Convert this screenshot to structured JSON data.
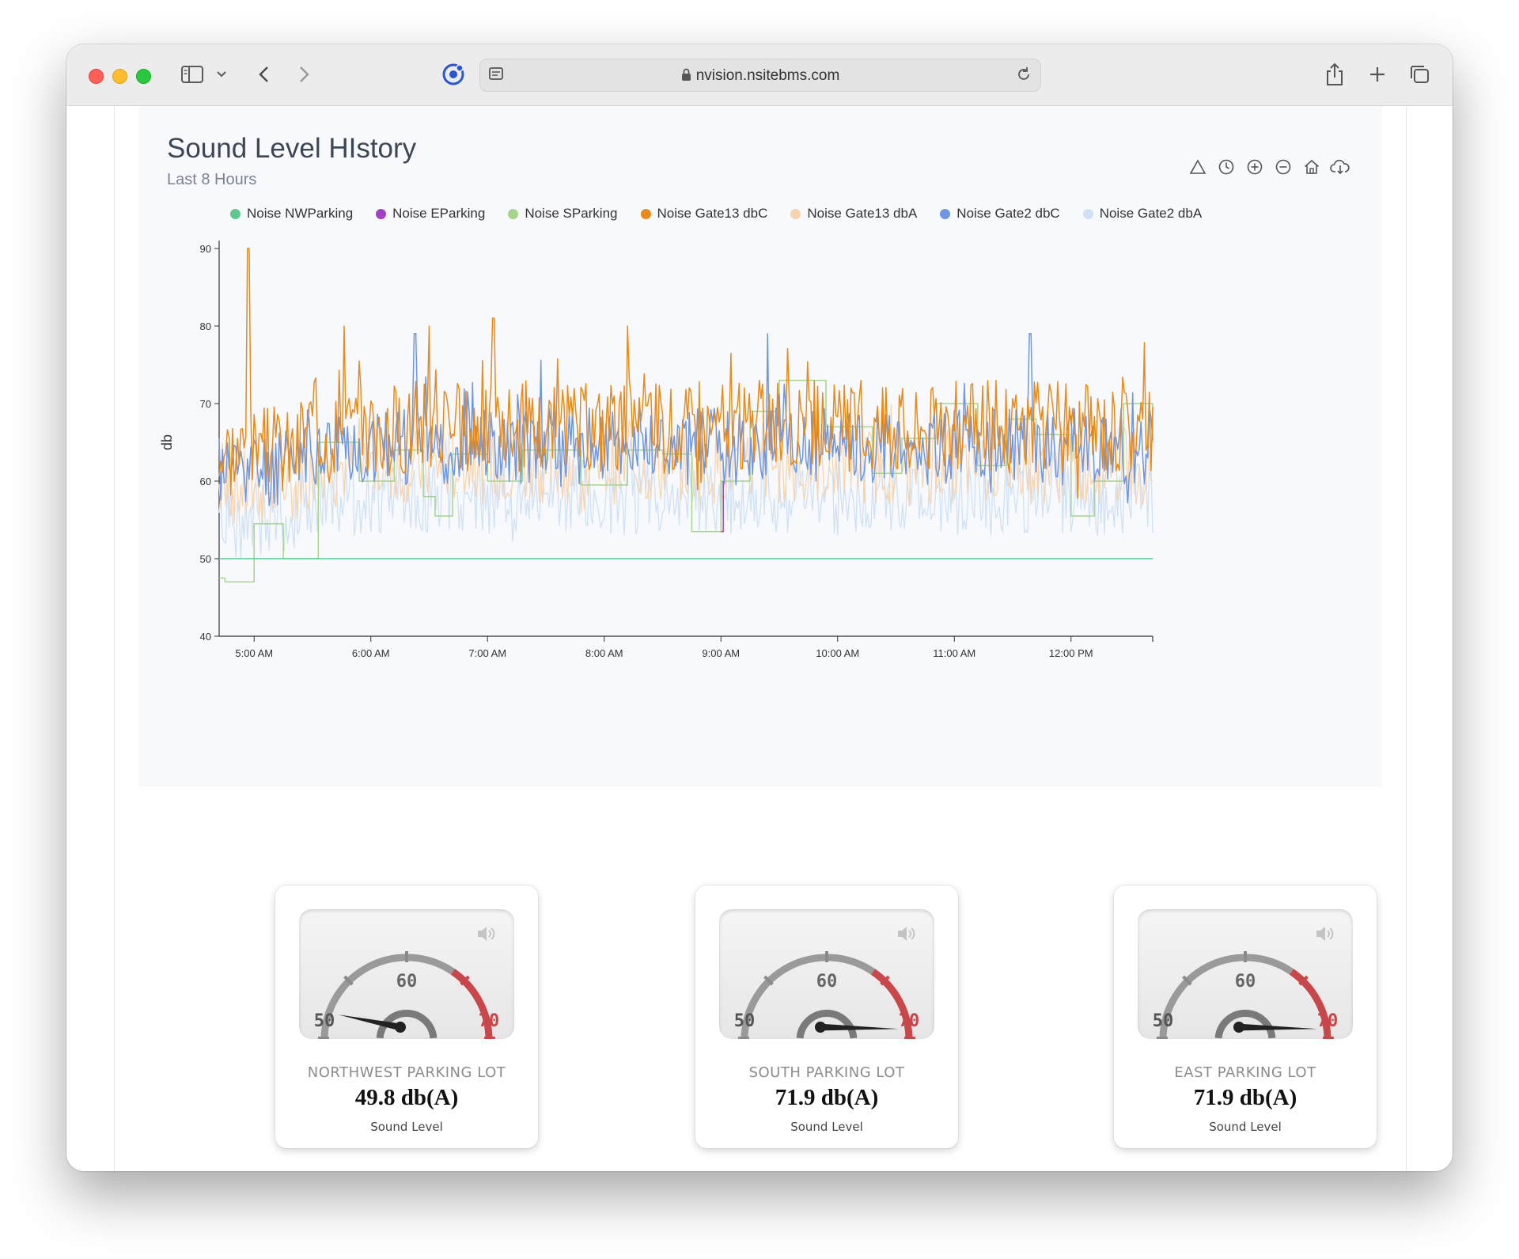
{
  "browser": {
    "url": "nvision.nsitebms.com"
  },
  "chart": {
    "title": "Sound Level HIstory",
    "subtitle": "Last 8 Hours",
    "toolbar": [
      "triangle-icon",
      "clock-icon",
      "zoom-in-icon",
      "zoom-out-icon",
      "home-icon",
      "download-cloud-icon"
    ]
  },
  "chart_data": {
    "type": "line",
    "ylabel": "db",
    "ylim": [
      40,
      90
    ],
    "yticks": [
      40,
      50,
      60,
      70,
      80,
      90
    ],
    "xlim_hours": [
      4.7,
      12.7
    ],
    "xticks": [
      {
        "h": 5,
        "label": "5:00 AM"
      },
      {
        "h": 6,
        "label": "6:00 AM"
      },
      {
        "h": 7,
        "label": "7:00 AM"
      },
      {
        "h": 8,
        "label": "8:00 AM"
      },
      {
        "h": 9,
        "label": "9:00 AM"
      },
      {
        "h": 10,
        "label": "10:00 AM"
      },
      {
        "h": 11,
        "label": "11:00 AM"
      },
      {
        "h": 12,
        "label": "12:00 PM"
      }
    ],
    "legend_position": "top",
    "series": [
      {
        "name": "Noise NWParking",
        "color": "#5ec98f",
        "style": "flat",
        "points": [
          [
            4.7,
            50
          ],
          [
            12.7,
            50
          ]
        ]
      },
      {
        "name": "Noise EParking",
        "color": "#a540c4",
        "style": "step",
        "points": [
          [
            9.0,
            53.5
          ],
          [
            9.02,
            60
          ]
        ]
      },
      {
        "name": "Noise SParking",
        "color": "#a5d48a",
        "style": "step",
        "points": [
          [
            4.7,
            47.5
          ],
          [
            4.75,
            47
          ],
          [
            5.0,
            54.5
          ],
          [
            5.25,
            50
          ],
          [
            5.55,
            65
          ],
          [
            5.9,
            60
          ],
          [
            6.2,
            64
          ],
          [
            6.45,
            58
          ],
          [
            6.55,
            55.5
          ],
          [
            6.7,
            63.5
          ],
          [
            7.0,
            60
          ],
          [
            7.3,
            64
          ],
          [
            7.5,
            61
          ],
          [
            7.5,
            64
          ],
          [
            7.8,
            59.5
          ],
          [
            8.2,
            64
          ],
          [
            8.5,
            63.5
          ],
          [
            8.75,
            53.5
          ],
          [
            9.0,
            60
          ],
          [
            9.25,
            69
          ],
          [
            9.5,
            73
          ],
          [
            9.9,
            67
          ],
          [
            10.3,
            61
          ],
          [
            10.55,
            65.5
          ],
          [
            10.85,
            70
          ],
          [
            11.2,
            62
          ],
          [
            11.45,
            68
          ],
          [
            11.7,
            66
          ],
          [
            12.0,
            55.5
          ],
          [
            12.2,
            60
          ],
          [
            12.45,
            70
          ],
          [
            12.7,
            65
          ]
        ]
      },
      {
        "name": "Noise Gate13 dbC",
        "color": "#e88a1a",
        "style": "noise",
        "mean": 67,
        "amp": 6,
        "seed": 3,
        "spikes": [
          [
            4.95,
            90
          ],
          [
            5.77,
            80
          ],
          [
            6.5,
            80
          ],
          [
            7.05,
            81
          ],
          [
            8.2,
            80
          ]
        ]
      },
      {
        "name": "Noise Gate13 dbA",
        "color": "#f7d4ae",
        "style": "noise",
        "mean": 62,
        "amp": 5,
        "seed": 7,
        "spikes": []
      },
      {
        "name": "Noise Gate2 dbC",
        "color": "#6f96e3",
        "style": "noise",
        "mean": 64.5,
        "amp": 5,
        "seed": 11,
        "spikes": [
          [
            6.38,
            79
          ],
          [
            9.4,
            79
          ],
          [
            11.65,
            79
          ]
        ]
      },
      {
        "name": "Noise Gate2 dbA",
        "color": "#cfe1f5",
        "style": "noise",
        "mean": 58,
        "amp": 5,
        "seed": 19,
        "spikes": []
      }
    ]
  },
  "gauges": [
    {
      "name": "NORTHWEST PARKING LOT",
      "value": 49.8,
      "display": "49.8 db(A)",
      "caption": "Sound Level"
    },
    {
      "name": "SOUTH PARKING LOT",
      "value": 71.9,
      "display": "71.9 db(A)",
      "caption": "Sound Level"
    },
    {
      "name": "EAST PARKING LOT",
      "value": 71.9,
      "display": "71.9 db(A)",
      "caption": "Sound Level"
    }
  ],
  "gauge_scale": {
    "min": 50,
    "max": 70,
    "labels": [
      "50",
      "60",
      "70"
    ],
    "icon": "speaker-icon"
  }
}
